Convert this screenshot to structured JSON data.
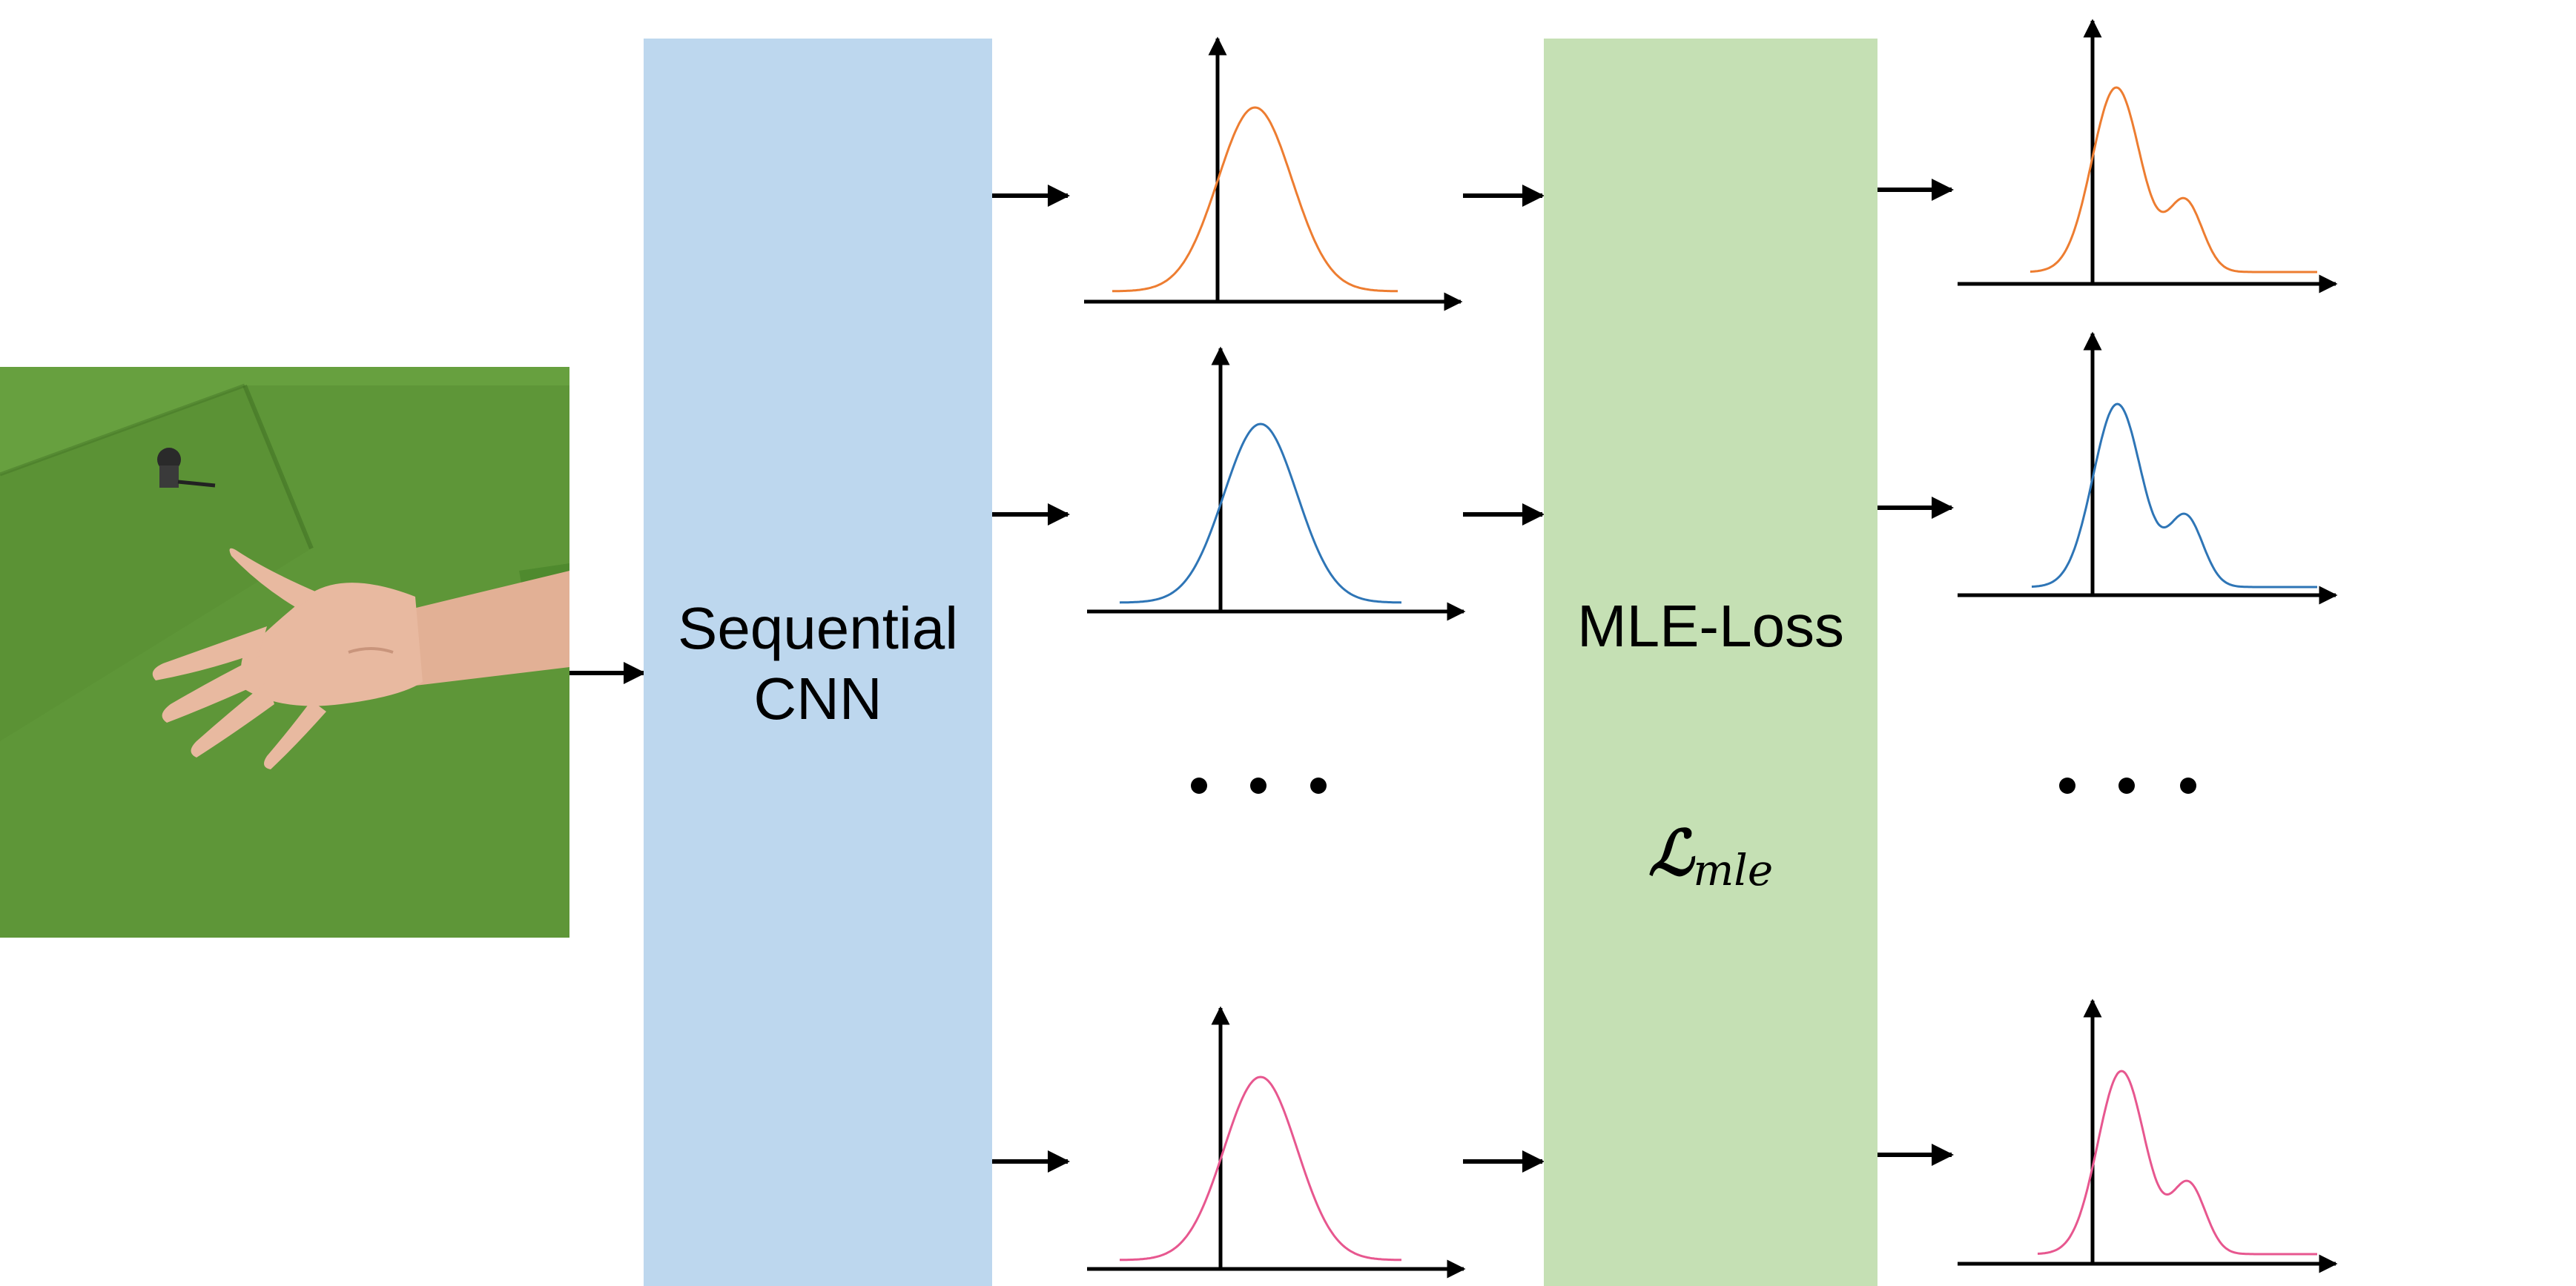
{
  "blocks": {
    "cnn": {
      "label_line1": "Sequential",
      "label_line2": "CNN",
      "color": "#BDD7EE"
    },
    "loss": {
      "label": "MLE-Loss",
      "formula_main": "ℒ",
      "formula_sub": "mle",
      "color": "#C5E0B4"
    }
  },
  "input_image": {
    "icon": "hand-photo",
    "background_color": "#5E9638",
    "skin_color": "#E8B9A0"
  },
  "distributions": {
    "input_side": [
      {
        "row": "top",
        "shape": "gaussian",
        "color": "#ED7D31"
      },
      {
        "row": "middle",
        "shape": "gaussian",
        "color": "#2E75B6"
      },
      {
        "row": "bottom",
        "shape": "gaussian",
        "color": "#E7578F"
      }
    ],
    "output_side": [
      {
        "row": "top",
        "shape": "bimodal",
        "color": "#ED7D31"
      },
      {
        "row": "middle",
        "shape": "bimodal",
        "color": "#2E75B6"
      },
      {
        "row": "bottom",
        "shape": "bimodal",
        "color": "#E7578F"
      }
    ]
  },
  "ellipsis_icon": "ellipsis-dots",
  "arrow_color": "#000000"
}
